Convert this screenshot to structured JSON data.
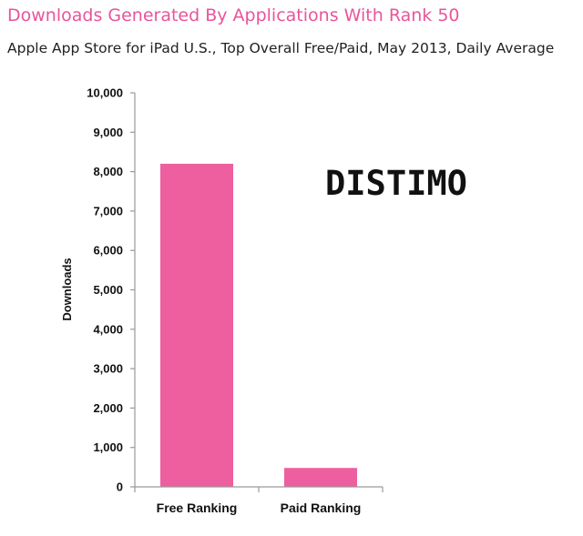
{
  "header": {
    "title": "Downloads Generated By Applications With Rank 50",
    "subtitle": "Apple App Store for iPad U.S., Top Overall Free/Paid, May 2013, Daily Average"
  },
  "watermark": "DISTIMO",
  "colors": {
    "title": "#e8559a",
    "bar": "#ee5f9f",
    "axis": "#9a9a9a"
  },
  "chart_data": {
    "type": "bar",
    "title": "Downloads Generated By Applications With Rank 50",
    "subtitle": "Apple App Store for iPad U.S., Top Overall Free/Paid, May 2013, Daily Average",
    "categories": [
      "Free Ranking",
      "Paid Ranking"
    ],
    "values": [
      8200,
      480
    ],
    "ylabel": "Downloads",
    "xlabel": "",
    "ylim": [
      0,
      10000
    ],
    "yticks": [
      0,
      1000,
      2000,
      3000,
      4000,
      5000,
      6000,
      7000,
      8000,
      9000,
      10000
    ],
    "ytick_labels": [
      "0",
      "1,000",
      "2,000",
      "3,000",
      "4,000",
      "5,000",
      "6,000",
      "7,000",
      "8,000",
      "9,000",
      "10,000"
    ],
    "grid": false,
    "legend": "none"
  }
}
